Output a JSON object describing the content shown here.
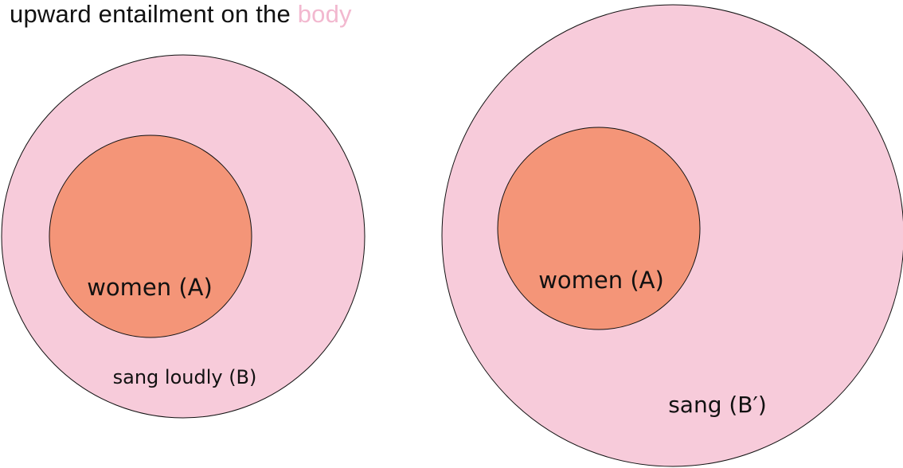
{
  "title": {
    "prefix": "upward entailment on the ",
    "highlight": "body"
  },
  "colors": {
    "outer_fill": "#f7cbda",
    "inner_fill": "#f49578",
    "stroke": "#111111",
    "highlight": "#f2b8cf"
  },
  "diagrams": [
    {
      "inner_label": "women (A)",
      "outer_label": "sang loudly (B)"
    },
    {
      "inner_label": "women (A)",
      "outer_label": "sang (B′)"
    }
  ]
}
